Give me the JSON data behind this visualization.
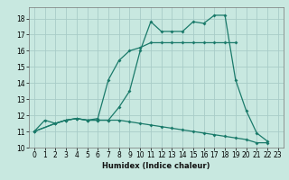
{
  "title": "",
  "xlabel": "Humidex (Indice chaleur)",
  "bg_color": "#c8e8e0",
  "grid_color": "#a8ccc8",
  "line_color": "#1a7a6a",
  "xlim": [
    -0.5,
    23.5
  ],
  "ylim": [
    10.0,
    18.7
  ],
  "xticks": [
    0,
    1,
    2,
    3,
    4,
    5,
    6,
    7,
    8,
    9,
    10,
    11,
    12,
    13,
    14,
    15,
    16,
    17,
    18,
    19,
    20,
    21,
    22,
    23
  ],
  "yticks": [
    10,
    11,
    12,
    13,
    14,
    15,
    16,
    17,
    18
  ],
  "line1_x": [
    0,
    1,
    2,
    3,
    4,
    5,
    6,
    7,
    8,
    9,
    10,
    11,
    12,
    13,
    14,
    15,
    16,
    17,
    18,
    19,
    20,
    21,
    22
  ],
  "line1_y": [
    11.0,
    11.7,
    11.5,
    11.7,
    11.8,
    11.7,
    11.7,
    11.7,
    12.5,
    13.5,
    16.0,
    17.8,
    17.2,
    17.2,
    17.2,
    17.8,
    17.7,
    18.2,
    18.2,
    14.2,
    12.3,
    10.9,
    10.4
  ],
  "line2_x": [
    0,
    2,
    3,
    4,
    5,
    6,
    7,
    8,
    9,
    10,
    11,
    12,
    13,
    14,
    15,
    16,
    17,
    18,
    19
  ],
  "line2_y": [
    11.0,
    11.5,
    11.7,
    11.8,
    11.7,
    11.8,
    14.2,
    15.4,
    16.0,
    16.2,
    16.5,
    16.5,
    16.5,
    16.5,
    16.5,
    16.5,
    16.5,
    16.5,
    16.5
  ],
  "line3_x": [
    0,
    2,
    3,
    4,
    5,
    6,
    7,
    8,
    9,
    10,
    11,
    12,
    13,
    14,
    15,
    16,
    17,
    18,
    19,
    20,
    21,
    22
  ],
  "line3_y": [
    11.0,
    11.5,
    11.7,
    11.8,
    11.7,
    11.7,
    11.7,
    11.7,
    11.6,
    11.5,
    11.4,
    11.3,
    11.2,
    11.1,
    11.0,
    10.9,
    10.8,
    10.7,
    10.6,
    10.5,
    10.3,
    10.3
  ]
}
